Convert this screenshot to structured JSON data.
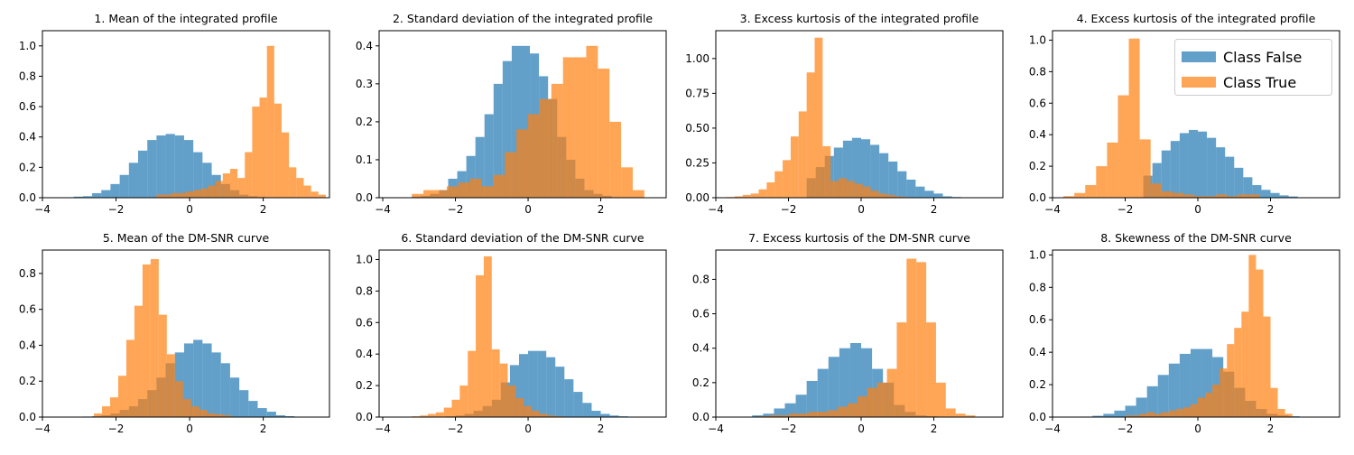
{
  "chart_data": [
    {
      "type": "histogram",
      "title": "1. Mean of the integrated profile",
      "xlim": [
        -4,
        3.8
      ],
      "ylim": [
        0,
        1.1
      ],
      "xticks": [
        -4,
        -2,
        0,
        2
      ],
      "yticks": [
        0,
        0.2,
        0.4,
        0.6,
        0.8,
        1.0
      ],
      "ytick_labels": [
        "0.0",
        "0.2",
        "0.4",
        "0.6",
        "0.8",
        "1.0"
      ],
      "series": [
        {
          "name": "Class False",
          "bin_start": -3.4,
          "bin_width": 0.25,
          "values": [
            0.003,
            0.007,
            0.01,
            0.03,
            0.05,
            0.09,
            0.15,
            0.23,
            0.31,
            0.38,
            0.41,
            0.42,
            0.41,
            0.38,
            0.3,
            0.23,
            0.15,
            0.09,
            0.05,
            0.02,
            0.01,
            0.005
          ]
        },
        {
          "name": "Class True",
          "bin_start": -0.9,
          "bin_width": 0.2,
          "values": [
            0.02,
            0.02,
            0.03,
            0.03,
            0.04,
            0.05,
            0.06,
            0.08,
            0.11,
            0.16,
            0.19,
            0.13,
            0.3,
            0.6,
            0.66,
            1.0,
            0.62,
            0.43,
            0.2,
            0.13,
            0.08,
            0.04,
            0.02
          ]
        }
      ]
    },
    {
      "type": "histogram",
      "title": "2. Standard deviation of the integrated profile",
      "xlim": [
        -4.1,
        3.8
      ],
      "ylim": [
        0,
        0.44
      ],
      "xticks": [
        -4,
        -2,
        0,
        2
      ],
      "yticks": [
        0,
        0.1,
        0.2,
        0.3,
        0.4
      ],
      "ytick_labels": [
        "0.0",
        "0.1",
        "0.2",
        "0.3",
        "0.4"
      ],
      "series": [
        {
          "name": "Class False",
          "bin_start": -3.2,
          "bin_width": 0.25,
          "values": [
            0.003,
            0.005,
            0.01,
            0.02,
            0.05,
            0.07,
            0.11,
            0.16,
            0.22,
            0.3,
            0.36,
            0.4,
            0.4,
            0.38,
            0.32,
            0.26,
            0.16,
            0.1,
            0.05,
            0.02,
            0.01,
            0.005
          ]
        },
        {
          "name": "Class True",
          "bin_start": -3.2,
          "bin_width": 0.32,
          "values": [
            0.01,
            0.02,
            0.02,
            0.03,
            0.04,
            0.05,
            0.03,
            0.06,
            0.12,
            0.18,
            0.22,
            0.26,
            0.3,
            0.37,
            0.37,
            0.4,
            0.34,
            0.2,
            0.08,
            0.02
          ]
        }
      ]
    },
    {
      "type": "histogram",
      "title": "3. Excess kurtosis of the integrated profile",
      "xlim": [
        -4,
        3.9
      ],
      "ylim": [
        0,
        1.2
      ],
      "xticks": [
        -4,
        -2,
        0,
        2
      ],
      "yticks": [
        0,
        0.25,
        0.5,
        0.75,
        1.0
      ],
      "ytick_labels": [
        "0.00",
        "0.25",
        "0.50",
        "0.75",
        "1.00"
      ],
      "series": [
        {
          "name": "Class False",
          "bin_start": -1.5,
          "bin_width": 0.25,
          "values": [
            0.14,
            0.22,
            0.3,
            0.36,
            0.41,
            0.43,
            0.42,
            0.38,
            0.32,
            0.26,
            0.19,
            0.13,
            0.08,
            0.05,
            0.03,
            0.01,
            0.005,
            0.002,
            0.001
          ]
        },
        {
          "name": "Class True",
          "bin_start": -3.7,
          "bin_width": 0.22,
          "values": [
            0.005,
            0.01,
            0.02,
            0.03,
            0.06,
            0.11,
            0.19,
            0.27,
            0.44,
            0.62,
            0.9,
            1.15,
            0.37,
            0.12,
            0.14,
            0.12,
            0.1,
            0.08,
            0.05,
            0.03,
            0.02,
            0.01,
            0.005
          ]
        }
      ]
    },
    {
      "type": "histogram",
      "title": "4. Excess kurtosis of the integrated profile",
      "xlim": [
        -4,
        3.9
      ],
      "ylim": [
        0,
        1.06
      ],
      "xticks": [
        -4,
        -2,
        0,
        2
      ],
      "yticks": [
        0,
        0.2,
        0.4,
        0.6,
        0.8,
        1.0
      ],
      "ytick_labels": [
        "0.0",
        "0.2",
        "0.4",
        "0.6",
        "0.8",
        "1.0"
      ],
      "legend": {
        "position": "upper right",
        "entries": [
          "Class False",
          "Class True"
        ]
      },
      "series": [
        {
          "name": "Class False",
          "bin_start": -1.5,
          "bin_width": 0.25,
          "values": [
            0.14,
            0.22,
            0.3,
            0.36,
            0.41,
            0.43,
            0.42,
            0.38,
            0.32,
            0.26,
            0.19,
            0.13,
            0.08,
            0.05,
            0.03,
            0.015,
            0.008
          ]
        },
        {
          "name": "Class True",
          "bin_start": -3.7,
          "bin_width": 0.3,
          "values": [
            0.01,
            0.03,
            0.08,
            0.2,
            0.35,
            0.65,
            1.01,
            0.37,
            0.09,
            0.04,
            0.03,
            0.02,
            0.01,
            0.01,
            0.02,
            0.01,
            0.02,
            0.02
          ]
        }
      ]
    },
    {
      "type": "histogram",
      "title": "5. Mean of the DM-SNR curve",
      "xlim": [
        -4,
        3.8
      ],
      "ylim": [
        0,
        0.93
      ],
      "xticks": [
        -4,
        -2,
        0,
        2
      ],
      "yticks": [
        0,
        0.2,
        0.4,
        0.6,
        0.8
      ],
      "ytick_labels": [
        "0.0",
        "0.2",
        "0.4",
        "0.6",
        "0.8"
      ],
      "series": [
        {
          "name": "Class False",
          "bin_start": -2.9,
          "bin_width": 0.25,
          "values": [
            0.003,
            0.005,
            0.01,
            0.02,
            0.04,
            0.06,
            0.1,
            0.15,
            0.22,
            0.3,
            0.36,
            0.41,
            0.43,
            0.41,
            0.36,
            0.3,
            0.22,
            0.15,
            0.09,
            0.05,
            0.03,
            0.01,
            0.005
          ]
        },
        {
          "name": "Class True",
          "bin_start": -2.6,
          "bin_width": 0.22,
          "values": [
            0.02,
            0.06,
            0.11,
            0.23,
            0.43,
            0.62,
            0.85,
            0.88,
            0.57,
            0.35,
            0.2,
            0.1,
            0.06,
            0.04,
            0.02,
            0.015,
            0.01
          ]
        }
      ]
    },
    {
      "type": "histogram",
      "title": "6. Standard deviation of the DM-SNR curve",
      "xlim": [
        -4.1,
        3.8
      ],
      "ylim": [
        0,
        1.06
      ],
      "xticks": [
        -4,
        -2,
        0,
        2
      ],
      "yticks": [
        0,
        0.2,
        0.4,
        0.6,
        0.8,
        1.0
      ],
      "ytick_labels": [
        "0.0",
        "0.2",
        "0.4",
        "0.6",
        "0.8",
        "1.0"
      ],
      "series": [
        {
          "name": "Class False",
          "bin_start": -2.5,
          "bin_width": 0.25,
          "values": [
            0.003,
            0.005,
            0.01,
            0.02,
            0.04,
            0.07,
            0.11,
            0.22,
            0.33,
            0.4,
            0.42,
            0.42,
            0.38,
            0.32,
            0.24,
            0.16,
            0.09,
            0.04,
            0.02,
            0.01,
            0.005
          ]
        },
        {
          "name": "Class True",
          "bin_start": -3.2,
          "bin_width": 0.22,
          "values": [
            0.005,
            0.01,
            0.02,
            0.03,
            0.06,
            0.11,
            0.2,
            0.42,
            0.9,
            1.02,
            0.43,
            0.34,
            0.2,
            0.12,
            0.07,
            0.04,
            0.02,
            0.01,
            0.005
          ]
        }
      ]
    },
    {
      "type": "histogram",
      "title": "7. Excess kurtosis of the DM-SNR curve",
      "xlim": [
        -4,
        3.9
      ],
      "ylim": [
        0,
        0.97
      ],
      "xticks": [
        -4,
        -2,
        0,
        2
      ],
      "yticks": [
        0,
        0.2,
        0.4,
        0.6,
        0.8
      ],
      "ytick_labels": [
        "0.0",
        "0.2",
        "0.4",
        "0.6",
        "0.8"
      ],
      "series": [
        {
          "name": "Class False",
          "bin_start": -3.0,
          "bin_width": 0.3,
          "values": [
            0.01,
            0.02,
            0.05,
            0.08,
            0.13,
            0.21,
            0.28,
            0.35,
            0.4,
            0.43,
            0.4,
            0.28,
            0.2,
            0.07,
            0.03,
            0.01,
            0.005
          ]
        },
        {
          "name": "Class True",
          "bin_start": -2.8,
          "bin_width": 0.27,
          "values": [
            0.005,
            0.01,
            0.01,
            0.02,
            0.02,
            0.03,
            0.03,
            0.04,
            0.06,
            0.08,
            0.12,
            0.17,
            0.2,
            0.28,
            0.55,
            0.92,
            0.9,
            0.55,
            0.2,
            0.05,
            0.02,
            0.01
          ]
        }
      ]
    },
    {
      "type": "histogram",
      "title": "8. Skewness of the DM-SNR curve",
      "xlim": [
        -4,
        3.9
      ],
      "ylim": [
        0,
        1.03
      ],
      "xticks": [
        -4,
        -2,
        0,
        2
      ],
      "yticks": [
        0,
        0.2,
        0.4,
        0.6,
        0.8,
        1.0
      ],
      "ytick_labels": [
        "0.0",
        "0.2",
        "0.4",
        "0.6",
        "0.8",
        "1.0"
      ],
      "series": [
        {
          "name": "Class False",
          "bin_start": -3.2,
          "bin_width": 0.3,
          "values": [
            0.003,
            0.008,
            0.02,
            0.04,
            0.07,
            0.12,
            0.19,
            0.26,
            0.33,
            0.39,
            0.42,
            0.42,
            0.37,
            0.28,
            0.18,
            0.1,
            0.05,
            0.02,
            0.01,
            0.005
          ]
        },
        {
          "name": "Class True",
          "bin_start": -2.0,
          "bin_width": 0.2,
          "values": [
            0.01,
            0.01,
            0.02,
            0.03,
            0.02,
            0.03,
            0.04,
            0.05,
            0.06,
            0.08,
            0.12,
            0.15,
            0.2,
            0.3,
            0.45,
            0.55,
            0.65,
            1.0,
            0.91,
            0.62,
            0.18,
            0.05,
            0.02
          ]
        }
      ]
    }
  ],
  "colors": {
    "class_false": "#1f77b4",
    "class_true": "#ff7f0e"
  }
}
